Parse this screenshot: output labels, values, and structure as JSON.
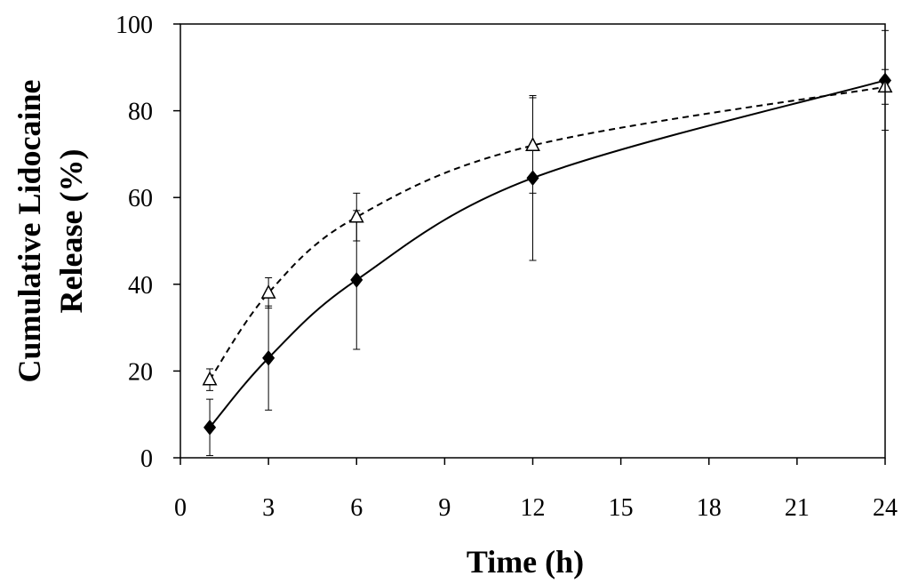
{
  "chart_data": {
    "type": "line",
    "title": "",
    "xlabel": "Time (h)",
    "ylabel_lines": [
      "Cumulative Lidocaine",
      "Release (%)"
    ],
    "xlim": [
      0,
      24
    ],
    "ylim": [
      0,
      100
    ],
    "x_ticks": [
      0,
      3,
      6,
      9,
      12,
      15,
      18,
      21,
      24
    ],
    "y_ticks": [
      0,
      20,
      40,
      60,
      80,
      100
    ],
    "x_tick_labels": [
      "0",
      "3",
      "6",
      "9",
      "12",
      "15",
      "18",
      "21",
      "24"
    ],
    "y_tick_labels": [
      "0",
      "20",
      "40",
      "60",
      "80",
      "100"
    ],
    "grid": false,
    "legend": "none",
    "series": [
      {
        "marker": "filled-diamond",
        "line_style": "solid",
        "color": "#000000",
        "x": [
          1,
          3,
          6,
          12,
          24
        ],
        "y": [
          7,
          23,
          41,
          64.5,
          87
        ],
        "error": [
          6.5,
          12,
          16,
          19,
          11.5
        ]
      },
      {
        "marker": "open-triangle",
        "line_style": "dashed",
        "color": "#000000",
        "x": [
          1,
          3,
          6,
          12,
          24
        ],
        "y": [
          18,
          38,
          55.5,
          72,
          85.5
        ],
        "error": [
          2.5,
          3.5,
          5.5,
          11,
          4
        ]
      }
    ]
  }
}
